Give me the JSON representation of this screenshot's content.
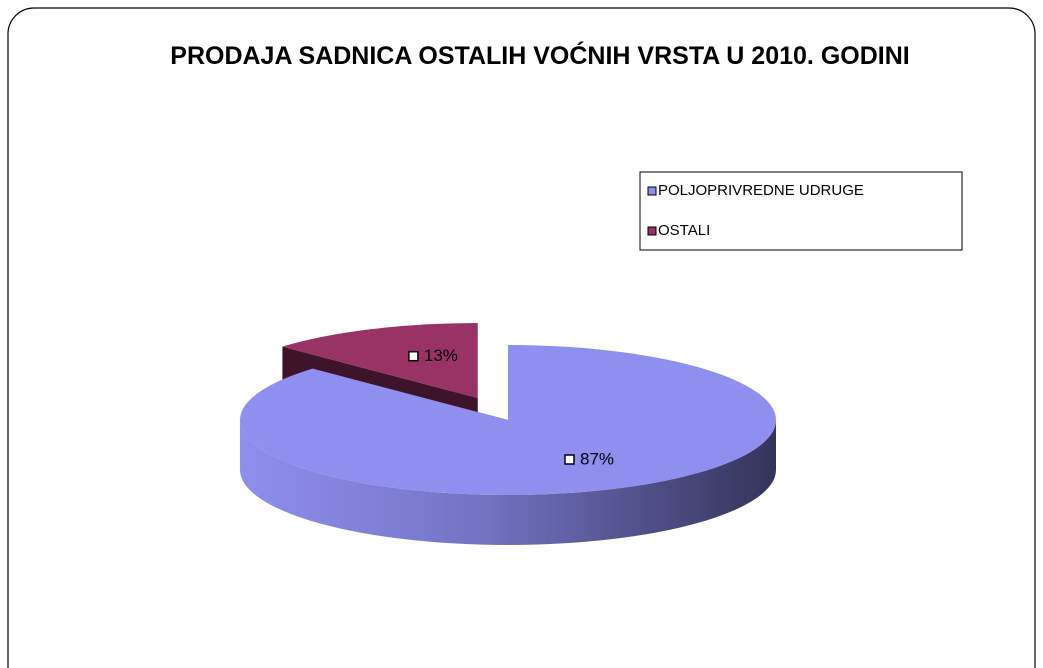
{
  "chart_data": {
    "type": "pie",
    "title": "PRODAJA SADNICA OSTALIH VOĆNIH VRSTA U 2010. GODINI",
    "categories": [
      "POLJOPRIVREDNE UDRUGE",
      "OSTALI"
    ],
    "values": [
      87,
      13
    ],
    "value_labels": [
      "87%",
      "13%"
    ],
    "colors": [
      "#8f8fef",
      "#993366"
    ],
    "legend": "right"
  }
}
